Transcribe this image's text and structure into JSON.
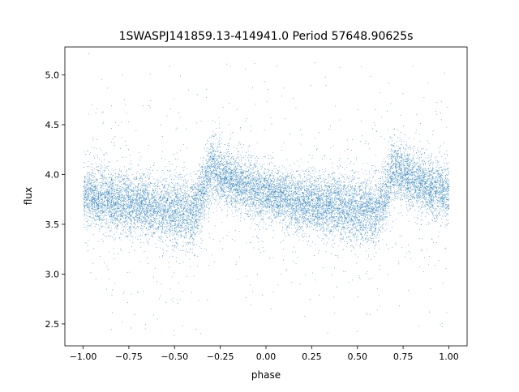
{
  "chart_data": {
    "type": "scatter",
    "title": "1SWASPJ141859.13-414941.0 Period 57648.90625s",
    "xlabel": "phase",
    "ylabel": "flux",
    "xlim": [
      -1.1,
      1.1
    ],
    "ylim": [
      2.28,
      5.28
    ],
    "x_ticks": [
      -1.0,
      -0.75,
      -0.5,
      -0.25,
      0.0,
      0.25,
      0.5,
      0.75,
      1.0
    ],
    "x_tick_labels": [
      "−1.00",
      "−0.75",
      "−0.50",
      "−0.25",
      "0.00",
      "0.25",
      "0.50",
      "0.75",
      "1.00"
    ],
    "y_ticks": [
      2.5,
      3.0,
      3.5,
      4.0,
      4.5,
      5.0
    ],
    "y_tick_labels": [
      "2.5",
      "3.0",
      "3.5",
      "4.0",
      "4.5",
      "5.0"
    ],
    "grid": false,
    "legend": "none",
    "point_color": "#1f77b4",
    "phase_range": [
      -1.0,
      1.0
    ],
    "period_phase": 1.0,
    "light_curve": {
      "phase": [
        0.0,
        0.1,
        0.2,
        0.3,
        0.4,
        0.5,
        0.6,
        0.65,
        0.7,
        0.75,
        0.8,
        0.9,
        1.0
      ],
      "median_flux": [
        3.82,
        3.76,
        3.72,
        3.7,
        3.67,
        3.64,
        3.63,
        3.8,
        4.08,
        4.0,
        3.95,
        3.87,
        3.82
      ],
      "scatter": [
        0.14,
        0.14,
        0.15,
        0.15,
        0.16,
        0.17,
        0.17,
        0.16,
        0.15,
        0.14,
        0.14,
        0.14,
        0.14
      ]
    }
  }
}
